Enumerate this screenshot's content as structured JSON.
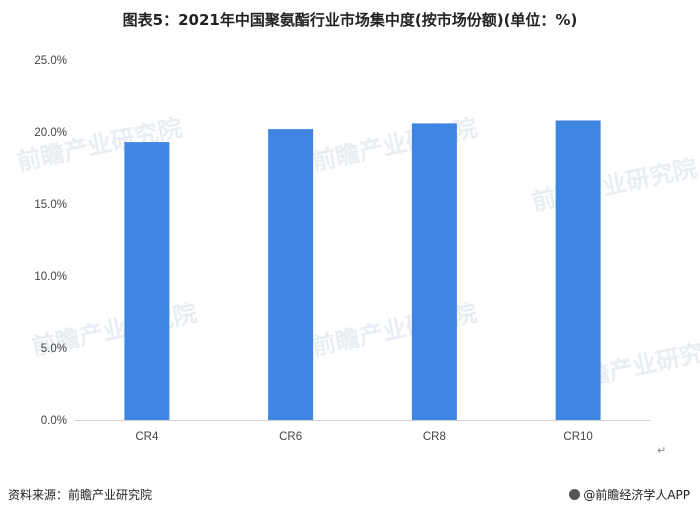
{
  "title": "图表5：2021年中国聚氨酯行业市场集中度(按市场份额)(单位：%)",
  "footer": {
    "source": "资料来源：前瞻产业研究院",
    "brand": "@前瞻经济学人APP"
  },
  "watermark_text": "前瞻产业研究院",
  "return_mark": "↵",
  "chart_data": {
    "type": "bar",
    "title": "图表5：2021年中国聚氨酯行业市场集中度(按市场份额)(单位：%)",
    "xlabel": "",
    "ylabel": "",
    "categories": [
      "CR4",
      "CR6",
      "CR8",
      "CR10"
    ],
    "values": [
      19.3,
      20.2,
      20.6,
      20.8
    ],
    "ylim": [
      0,
      25
    ],
    "yticks": [
      0,
      5,
      10,
      15,
      20,
      25
    ],
    "ytick_labels": [
      "0.0%",
      "5.0%",
      "10.0%",
      "15.0%",
      "20.0%",
      "25.0%"
    ],
    "grid": false,
    "legend": "none",
    "bar_color": "#3f86e3"
  }
}
